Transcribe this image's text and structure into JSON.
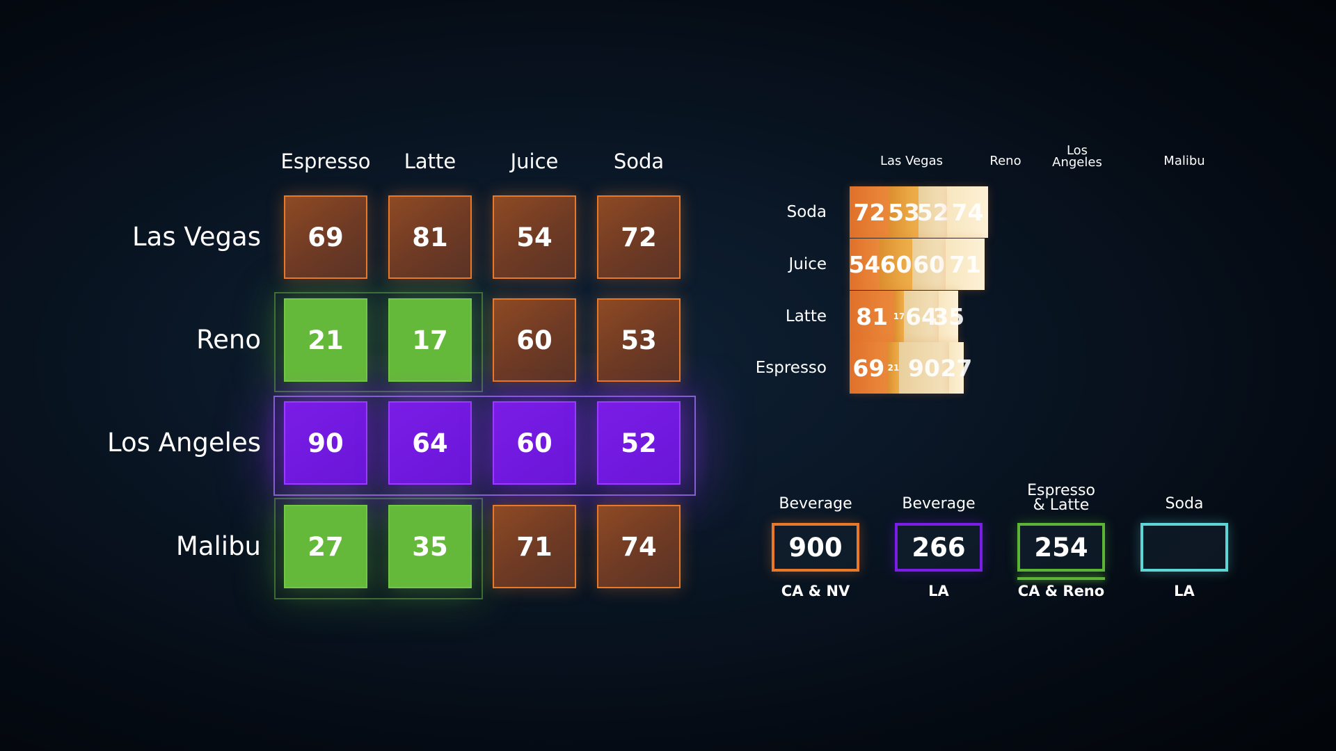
{
  "chart_data": [
    {
      "type": "heatmap",
      "columns": [
        "Espresso",
        "Latte",
        "Juice",
        "Soda"
      ],
      "rows": [
        "Las Vegas",
        "Reno",
        "Los Angeles",
        "Malibu"
      ],
      "values": [
        [
          69,
          81,
          54,
          72
        ],
        [
          21,
          17,
          60,
          53
        ],
        [
          90,
          64,
          60,
          52
        ],
        [
          27,
          35,
          71,
          74
        ]
      ],
      "cell_colors": [
        [
          "orange",
          "orange",
          "orange",
          "orange"
        ],
        [
          "green",
          "green",
          "orange",
          "orange"
        ],
        [
          "purple",
          "purple",
          "purple",
          "purple"
        ],
        [
          "green",
          "green",
          "orange",
          "orange"
        ]
      ]
    },
    {
      "type": "bar",
      "stacked": true,
      "orientation": "horizontal",
      "categories": [
        "Soda",
        "Juice",
        "Latte",
        "Espresso"
      ],
      "series": [
        {
          "name": "Las Vegas",
          "color": "#e8792b",
          "values": [
            72,
            54,
            81,
            69
          ]
        },
        {
          "name": "Reno",
          "color": "#e8a43a",
          "values": [
            53,
            60,
            17,
            21
          ]
        },
        {
          "name": "Los Angeles",
          "color": "#f0d9a8",
          "values": [
            52,
            60,
            64,
            90
          ]
        },
        {
          "name": "Malibu",
          "color": "#fbecc8",
          "values": [
            74,
            71,
            35,
            27
          ]
        }
      ],
      "column_labels": [
        {
          "lines": [
            "Las Vegas"
          ]
        },
        {
          "lines": [
            "Reno"
          ]
        },
        {
          "lines": [
            "Los",
            "Angeles"
          ]
        },
        {
          "lines": [
            "Malibu"
          ]
        }
      ]
    },
    {
      "type": "table",
      "items": [
        {
          "label_lines": [
            "Beverage"
          ],
          "value": "900",
          "sub": "CA & NV",
          "color": "#e8792b"
        },
        {
          "label_lines": [
            "Beverage"
          ],
          "value": "266",
          "sub": "LA",
          "color": "#7a1de6"
        },
        {
          "label_lines": [
            "Espresso",
            "& Latte"
          ],
          "value": "254",
          "sub": "CA & Reno",
          "color": "#5cb437"
        },
        {
          "label_lines": [
            "Soda"
          ],
          "value": "",
          "sub": "LA",
          "color": "#5fd6d6"
        }
      ]
    }
  ]
}
